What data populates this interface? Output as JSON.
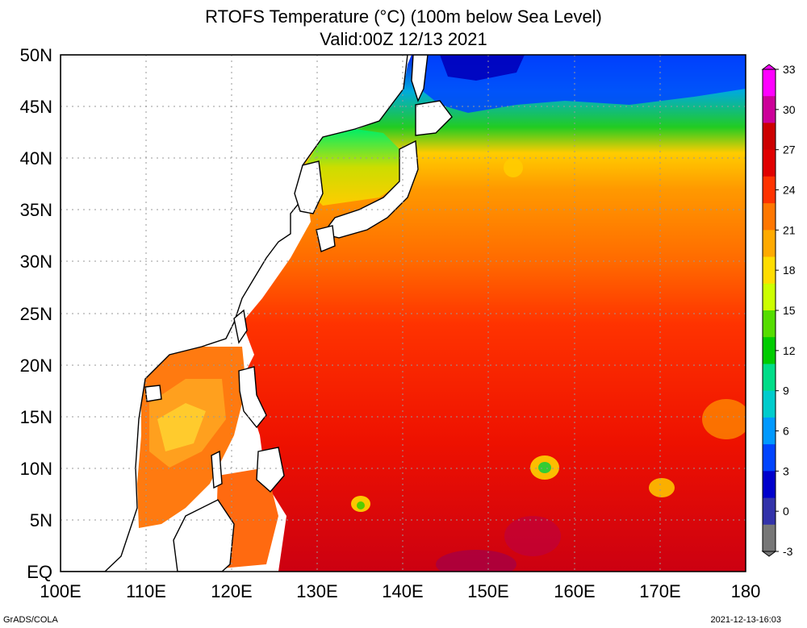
{
  "title": {
    "line1": "RTOFS Temperature (°C) (100m below Sea Level)",
    "line2": "Valid:00Z 12/13 2021"
  },
  "axes": {
    "lat_labels": [
      "50N",
      "45N",
      "40N",
      "35N",
      "30N",
      "25N",
      "20N",
      "15N",
      "10N",
      "5N",
      "EQ"
    ],
    "lon_labels": [
      "100E",
      "110E",
      "120E",
      "130E",
      "140E",
      "150E",
      "160E",
      "170E",
      "180"
    ]
  },
  "colorbar": {
    "ticks": [
      "33",
      "30",
      "27",
      "24",
      "21",
      "18",
      "15",
      "12",
      "9",
      "6",
      "3",
      "0",
      "-3"
    ],
    "colors": [
      "#ff00ff",
      "#cc0099",
      "#cc0000",
      "#e00000",
      "#ff3300",
      "#ff7700",
      "#ffaa00",
      "#ffdd00",
      "#ccff00",
      "#55dd00",
      "#00cc00",
      "#00dd88",
      "#00cccc",
      "#0099ff",
      "#0044ff",
      "#0000cc",
      "#3333aa",
      "#777777"
    ]
  },
  "footer": {
    "left": "GrADS/COLA",
    "right": "2021-12-13-16:03"
  }
}
